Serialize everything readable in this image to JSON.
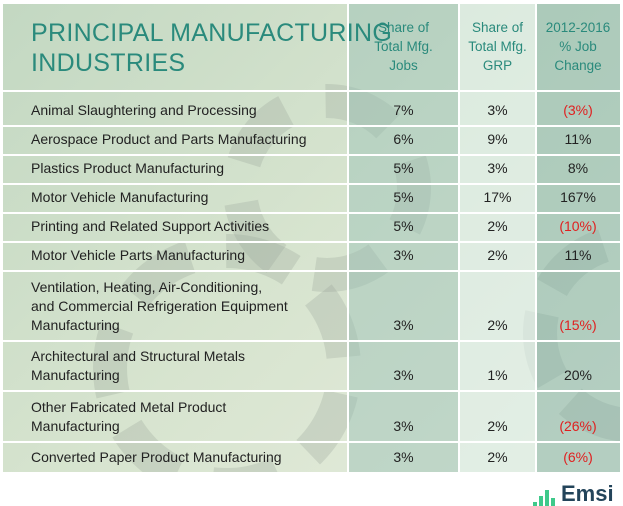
{
  "title_line1": "PRINCIPAL MANUFACTURING",
  "title_line2": "INDUSTRIES",
  "headers": [
    "Share of Total Mfg. Jobs",
    "Share of Total Mfg. GRP",
    "2012-2016 % Job Change"
  ],
  "header_lines": [
    [
      "Share of",
      "Total Mfg.",
      "Jobs"
    ],
    [
      "Share of",
      "Total Mfg.",
      "GRP"
    ],
    [
      "2012-2016",
      "% Job",
      "Change"
    ]
  ],
  "rows": [
    {
      "lines": [
        "Animal Slaughtering and Processing"
      ],
      "jobs": "7%",
      "grp": "3%",
      "change": "(3%)",
      "negative": true
    },
    {
      "lines": [
        "Aerospace Product and Parts Manufacturing"
      ],
      "jobs": "6%",
      "grp": "9%",
      "change": "11%",
      "negative": false
    },
    {
      "lines": [
        "Plastics Product Manufacturing"
      ],
      "jobs": "5%",
      "grp": "3%",
      "change": "8%",
      "negative": false
    },
    {
      "lines": [
        "Motor Vehicle Manufacturing"
      ],
      "jobs": "5%",
      "grp": "17%",
      "change": "167%",
      "negative": false
    },
    {
      "lines": [
        "Printing and Related Support Activities"
      ],
      "jobs": "5%",
      "grp": "2%",
      "change": "(10%)",
      "negative": true
    },
    {
      "lines": [
        "Motor Vehicle Parts Manufacturing"
      ],
      "jobs": "3%",
      "grp": "2%",
      "change": "11%",
      "negative": false
    },
    {
      "lines": [
        "Ventilation, Heating, Air-Conditioning,",
        "and Commercial Refrigeration Equipment",
        "Manufacturing"
      ],
      "jobs": "3%",
      "grp": "2%",
      "change": "(15%)",
      "negative": true
    },
    {
      "lines": [
        "Architectural and Structural Metals",
        "Manufacturing"
      ],
      "jobs": "3%",
      "grp": "1%",
      "change": "20%",
      "negative": false
    },
    {
      "lines": [
        "Other Fabricated Metal Product",
        "Manufacturing"
      ],
      "jobs": "3%",
      "grp": "2%",
      "change": "(26%)",
      "negative": true
    },
    {
      "lines": [
        "Converted Paper Product Manufacturing"
      ],
      "jobs": "3%",
      "grp": "2%",
      "change": "(6%)",
      "negative": true
    }
  ],
  "logo": "Emsi",
  "colors": {
    "title": "#2a8a7c",
    "negative": "#e02020",
    "logo": "#23445a",
    "logo_bars": "#3ec98a"
  },
  "chart_data": {
    "type": "table",
    "title": "PRINCIPAL MANUFACTURING INDUSTRIES",
    "columns": [
      "Share of Total Mfg. Jobs",
      "Share of Total Mfg. GRP",
      "2012-2016 % Job Change"
    ],
    "categories": [
      "Animal Slaughtering and Processing",
      "Aerospace Product and Parts Manufacturing",
      "Plastics Product Manufacturing",
      "Motor Vehicle Manufacturing",
      "Printing and Related Support Activities",
      "Motor Vehicle Parts Manufacturing",
      "Ventilation, Heating, Air-Conditioning, and Commercial Refrigeration Equipment Manufacturing",
      "Architectural and Structural Metals Manufacturing",
      "Other Fabricated Metal Product Manufacturing",
      "Converted Paper Product Manufacturing"
    ],
    "series": [
      {
        "name": "Share of Total Mfg. Jobs",
        "values": [
          7,
          6,
          5,
          5,
          5,
          3,
          3,
          3,
          3,
          3
        ]
      },
      {
        "name": "Share of Total Mfg. GRP",
        "values": [
          3,
          9,
          3,
          17,
          2,
          2,
          2,
          1,
          2,
          2
        ]
      },
      {
        "name": "2012-2016 % Job Change",
        "values": [
          -3,
          11,
          8,
          167,
          -10,
          11,
          -15,
          20,
          -26,
          -6
        ]
      }
    ]
  }
}
